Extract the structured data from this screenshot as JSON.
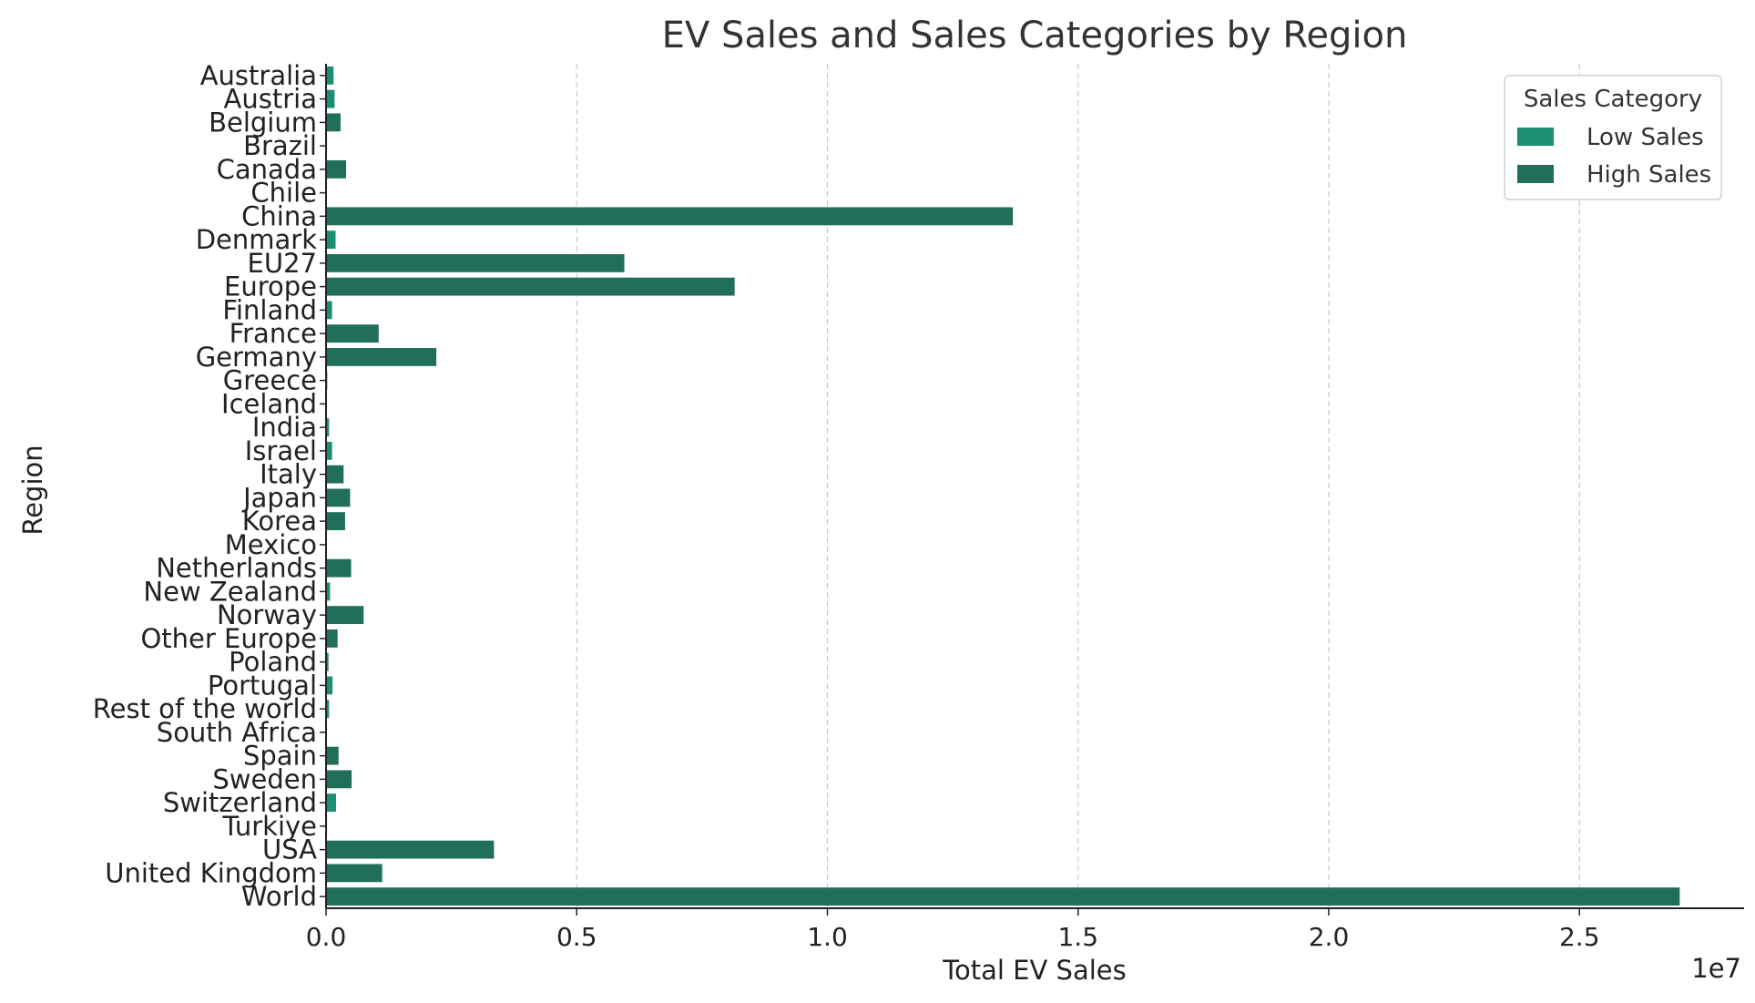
{
  "chart_data": {
    "type": "bar",
    "orientation": "horizontal",
    "title": "EV Sales and Sales Categories by Region",
    "xlabel": "Total EV Sales",
    "ylabel": "Region",
    "x_offset_label": "1e7",
    "xlim": [
      0,
      28300000
    ],
    "x_ticks": [
      0,
      5000000,
      10000000,
      15000000,
      20000000,
      25000000
    ],
    "x_tick_labels": [
      "0.0",
      "0.5",
      "1.0",
      "1.5",
      "2.0",
      "2.5"
    ],
    "grid": "x-dashed",
    "legend": {
      "title": "Sales Category",
      "placement": "top-right",
      "entries": [
        {
          "name": "Low Sales",
          "color": "#1b8f73"
        },
        {
          "name": "High Sales",
          "color": "#216e5b"
        }
      ]
    },
    "categories": [
      "Australia",
      "Austria",
      "Belgium",
      "Brazil",
      "Canada",
      "Chile",
      "China",
      "Denmark",
      "EU27",
      "Europe",
      "Finland",
      "France",
      "Germany",
      "Greece",
      "Iceland",
      "India",
      "Israel",
      "Italy",
      "Japan",
      "Korea",
      "Mexico",
      "Netherlands",
      "New Zealand",
      "Norway",
      "Other Europe",
      "Poland",
      "Portugal",
      "Rest of the world",
      "South Africa",
      "Spain",
      "Sweden",
      "Switzerland",
      "Turkiye",
      "USA",
      "United Kingdom",
      "World"
    ],
    "values": [
      150000,
      170000,
      290000,
      20000,
      400000,
      8000,
      13700000,
      190000,
      5950000,
      8150000,
      120000,
      1050000,
      2200000,
      25000,
      15000,
      60000,
      120000,
      350000,
      480000,
      380000,
      10000,
      500000,
      80000,
      750000,
      230000,
      50000,
      130000,
      60000,
      2000,
      250000,
      510000,
      200000,
      20000,
      3350000,
      1120000,
      27000000
    ],
    "categories_by_sales": [
      "Low Sales",
      "Low Sales",
      "High Sales",
      "Low Sales",
      "High Sales",
      "Low Sales",
      "High Sales",
      "Low Sales",
      "High Sales",
      "High Sales",
      "Low Sales",
      "High Sales",
      "High Sales",
      "Low Sales",
      "Low Sales",
      "Low Sales",
      "Low Sales",
      "High Sales",
      "High Sales",
      "High Sales",
      "Low Sales",
      "High Sales",
      "Low Sales",
      "High Sales",
      "High Sales",
      "Low Sales",
      "Low Sales",
      "Low Sales",
      "Low Sales",
      "High Sales",
      "High Sales",
      "Low Sales",
      "Low Sales",
      "High Sales",
      "High Sales",
      "High Sales"
    ]
  }
}
